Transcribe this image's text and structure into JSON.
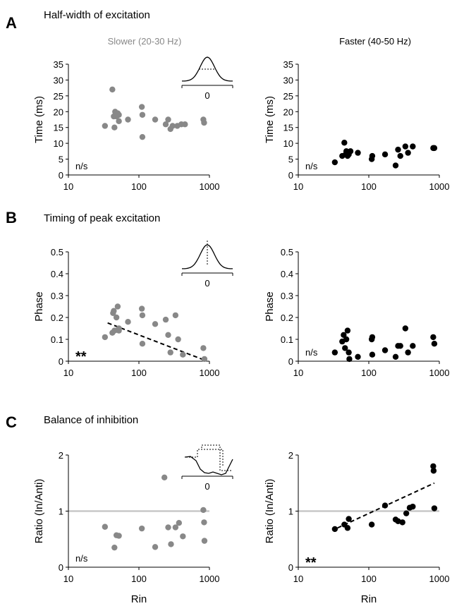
{
  "figure": {
    "sections": [
      {
        "letter": "A",
        "title": "Half-width of excitation"
      },
      {
        "letter": "B",
        "title": "Timing of peak excitation"
      },
      {
        "letter": "C",
        "title": "Balance of inhibition"
      }
    ],
    "columns": [
      "Slower (20-30 Hz)",
      "Faster (40-50 Hz)"
    ],
    "colors": {
      "slower": "#888888",
      "faster": "#000000",
      "reference_line": "#c8c8c8"
    }
  },
  "chart_data": [
    {
      "type": "scatter",
      "section": "A",
      "column": "slower",
      "xlabel": "",
      "ylabel": "Time (ms)",
      "xscale": "log",
      "xlim": [
        10,
        1000
      ],
      "ylim": [
        0,
        35
      ],
      "xticks": [
        "10",
        "100",
        "1000"
      ],
      "yticks": [
        "0",
        "5",
        "10",
        "15",
        "20",
        "25",
        "30",
        "35"
      ],
      "annotation": "n/s",
      "inset": true,
      "inset_tick": "0",
      "points": [
        [
          33,
          15.5
        ],
        [
          42,
          27
        ],
        [
          44,
          18.5
        ],
        [
          46,
          20
        ],
        [
          45,
          15
        ],
        [
          48,
          18.5
        ],
        [
          50,
          19.5
        ],
        [
          52,
          17
        ],
        [
          52,
          19
        ],
        [
          70,
          17.5
        ],
        [
          110,
          21.5
        ],
        [
          112,
          19
        ],
        [
          112,
          12
        ],
        [
          170,
          17.5
        ],
        [
          240,
          16
        ],
        [
          260,
          17.5
        ],
        [
          280,
          14.5
        ],
        [
          300,
          15.5
        ],
        [
          350,
          15.5
        ],
        [
          400,
          16
        ],
        [
          450,
          16
        ],
        [
          820,
          17.5
        ],
        [
          840,
          16.5
        ]
      ]
    },
    {
      "type": "scatter",
      "section": "A",
      "column": "faster",
      "xlabel": "",
      "ylabel": "Time (ms)",
      "xscale": "log",
      "xlim": [
        10,
        1000
      ],
      "ylim": [
        0,
        35
      ],
      "xticks": [
        "10",
        "100",
        "1000"
      ],
      "yticks": [
        "0",
        "5",
        "10",
        "15",
        "20",
        "25",
        "30",
        "35"
      ],
      "annotation": "n/s",
      "inset": false,
      "points": [
        [
          33,
          4
        ],
        [
          42,
          6
        ],
        [
          45,
          10.2
        ],
        [
          47,
          6.5
        ],
        [
          48,
          7.5
        ],
        [
          50,
          6
        ],
        [
          52,
          6.5
        ],
        [
          55,
          7.5
        ],
        [
          70,
          7
        ],
        [
          110,
          5
        ],
        [
          112,
          6
        ],
        [
          170,
          6.5
        ],
        [
          240,
          3
        ],
        [
          260,
          8
        ],
        [
          280,
          6
        ],
        [
          330,
          9
        ],
        [
          360,
          7
        ],
        [
          420,
          9
        ],
        [
          820,
          8.5
        ],
        [
          850,
          8.5
        ]
      ]
    },
    {
      "type": "scatter",
      "section": "B",
      "column": "slower",
      "xlabel": "",
      "ylabel": "Phase",
      "xscale": "log",
      "xlim": [
        10,
        1000
      ],
      "ylim": [
        0,
        0.5
      ],
      "xticks": [
        "10",
        "100",
        "1000"
      ],
      "yticks": [
        "0",
        "0.1",
        "0.2",
        "0.3",
        "0.4",
        "0.5"
      ],
      "annotation": "**",
      "inset": true,
      "inset_tick": "0",
      "trend": {
        "style": "dashed",
        "from": [
          36,
          0.175
        ],
        "to": [
          850,
          0.005
        ]
      },
      "points": [
        [
          33,
          0.11
        ],
        [
          42,
          0.13
        ],
        [
          43,
          0.22
        ],
        [
          44,
          0.23
        ],
        [
          45,
          0.14
        ],
        [
          48,
          0.2
        ],
        [
          50,
          0.25
        ],
        [
          52,
          0.15
        ],
        [
          52,
          0.14
        ],
        [
          70,
          0.18
        ],
        [
          110,
          0.24
        ],
        [
          112,
          0.21
        ],
        [
          112,
          0.08
        ],
        [
          170,
          0.17
        ],
        [
          240,
          0.19
        ],
        [
          260,
          0.12
        ],
        [
          280,
          0.04
        ],
        [
          330,
          0.21
        ],
        [
          360,
          0.1
        ],
        [
          420,
          0.03
        ],
        [
          820,
          0.06
        ],
        [
          850,
          0.01
        ]
      ]
    },
    {
      "type": "scatter",
      "section": "B",
      "column": "faster",
      "xlabel": "",
      "ylabel": "Phase",
      "xscale": "log",
      "xlim": [
        10,
        1000
      ],
      "ylim": [
        0,
        0.5
      ],
      "xticks": [
        "10",
        "100",
        "1000"
      ],
      "yticks": [
        "0",
        "0.1",
        "0.2",
        "0.3",
        "0.4",
        "0.5"
      ],
      "annotation": "n/s",
      "inset": false,
      "points": [
        [
          33,
          0.04
        ],
        [
          42,
          0.09
        ],
        [
          44,
          0.12
        ],
        [
          46,
          0.06
        ],
        [
          48,
          0.1
        ],
        [
          50,
          0.14
        ],
        [
          52,
          0.04
        ],
        [
          53,
          0.01
        ],
        [
          70,
          0.02
        ],
        [
          110,
          0.1
        ],
        [
          112,
          0.11
        ],
        [
          112,
          0.03
        ],
        [
          170,
          0.05
        ],
        [
          240,
          0.02
        ],
        [
          260,
          0.07
        ],
        [
          280,
          0.07
        ],
        [
          330,
          0.15
        ],
        [
          360,
          0.04
        ],
        [
          420,
          0.07
        ],
        [
          820,
          0.11
        ],
        [
          850,
          0.08
        ]
      ]
    },
    {
      "type": "scatter",
      "section": "C",
      "column": "slower",
      "xlabel": "Rin",
      "ylabel": "Ratio (In/Anti)",
      "xscale": "log",
      "xlim": [
        10,
        1000
      ],
      "ylim": [
        0,
        2
      ],
      "xticks": [
        "10",
        "100",
        "1000"
      ],
      "yticks": [
        "0",
        "1",
        "2"
      ],
      "annotation": "n/s",
      "inset": true,
      "inset_tick": "0",
      "reference_line": 1,
      "points": [
        [
          33,
          0.72
        ],
        [
          45,
          0.35
        ],
        [
          48,
          0.57
        ],
        [
          52,
          0.56
        ],
        [
          110,
          0.69
        ],
        [
          170,
          0.36
        ],
        [
          230,
          1.6
        ],
        [
          260,
          0.71
        ],
        [
          285,
          0.41
        ],
        [
          330,
          0.71
        ],
        [
          370,
          0.79
        ],
        [
          420,
          0.55
        ],
        [
          820,
          1.02
        ],
        [
          840,
          0.8
        ],
        [
          850,
          0.47
        ]
      ]
    },
    {
      "type": "scatter",
      "section": "C",
      "column": "faster",
      "xlabel": "Rin",
      "ylabel": "Ratio (In/Anti)",
      "xscale": "log",
      "xlim": [
        10,
        1000
      ],
      "ylim": [
        0,
        2
      ],
      "xticks": [
        "10",
        "100",
        "1000"
      ],
      "yticks": [
        "0",
        "1",
        "2"
      ],
      "annotation": "**",
      "inset": false,
      "reference_line": 1,
      "trend": {
        "style": "dashed",
        "from": [
          36,
          0.7
        ],
        "to": [
          850,
          1.5
        ]
      },
      "points": [
        [
          33,
          0.68
        ],
        [
          45,
          0.76
        ],
        [
          50,
          0.7
        ],
        [
          52,
          0.86
        ],
        [
          110,
          0.76
        ],
        [
          170,
          1.1
        ],
        [
          240,
          0.85
        ],
        [
          260,
          0.82
        ],
        [
          300,
          0.8
        ],
        [
          340,
          0.96
        ],
        [
          380,
          1.06
        ],
        [
          420,
          1.08
        ],
        [
          820,
          1.8
        ],
        [
          830,
          1.72
        ],
        [
          850,
          1.05
        ]
      ]
    }
  ]
}
